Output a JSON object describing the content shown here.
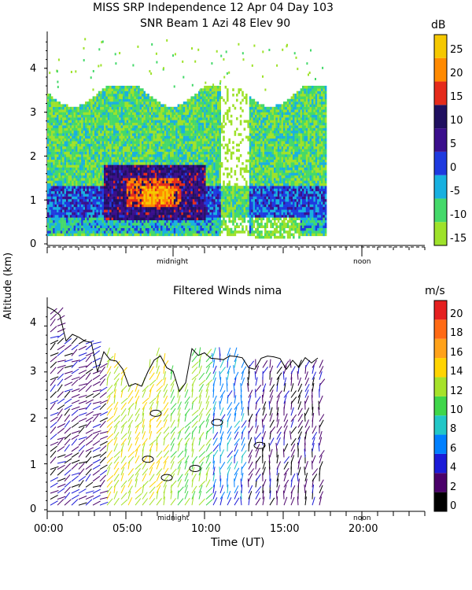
{
  "chart_data": [
    {
      "type": "heatmap",
      "title": "MISS SRP Independence  12 Apr 04 Day 103",
      "subtitle": "SNR Beam 1 Azi  48 Elev 90",
      "colorbar_unit": "dB",
      "colorbar_ticks": [
        "25",
        "20",
        "15",
        "10",
        "5",
        "0",
        "-5",
        "-10",
        "-15"
      ],
      "colorbar_range": [
        -15,
        30
      ],
      "colorbar_colors": [
        "#9ee22a",
        "#44d96a",
        "#18b0e0",
        "#1e3adf",
        "#3a0f8c",
        "#201060",
        "#e52b1b",
        "#ff8a00",
        "#f5c800"
      ],
      "y_ticks": [
        "0",
        "1",
        "2",
        "3",
        "4"
      ],
      "ylim": [
        0,
        4.8
      ],
      "x_range_hours": [
        0,
        24
      ],
      "data_extent_hours": [
        0,
        17.7
      ],
      "markers": [
        "midnight",
        "noon"
      ],
      "regions": [
        {
          "desc": "core",
          "t": [
            3.5,
            10.0
          ],
          "alt": [
            0.5,
            1.8
          ],
          "db": 15
        },
        {
          "desc": "peak",
          "t": [
            5.0,
            8.5
          ],
          "alt": [
            0.8,
            1.5
          ],
          "db": 22
        },
        {
          "desc": "lower layer",
          "t": [
            0.5,
            17.5
          ],
          "alt": [
            0.2,
            1.2
          ],
          "db": 5
        },
        {
          "desc": "upper layer",
          "t": [
            0,
            17.7
          ],
          "alt": [
            1.2,
            3.3
          ],
          "db": -8
        }
      ]
    },
    {
      "type": "vector-field",
      "title": "Filtered Winds nima",
      "colorbar_unit": "m/s",
      "colorbar_ticks": [
        "20",
        "18",
        "16",
        "14",
        "12",
        "10",
        "8",
        "6",
        "4",
        "2",
        "0"
      ],
      "colorbar_range": [
        0,
        22
      ],
      "colorbar_colors": [
        "#000000",
        "#4a006a",
        "#1b1bd8",
        "#0080ff",
        "#22c7c7",
        "#3fd64a",
        "#a6e22a",
        "#ffd400",
        "#ffa21a",
        "#ff6a14",
        "#e52020"
      ],
      "y_ticks": [
        "0",
        "1",
        "2",
        "3",
        "4"
      ],
      "ylim": [
        0,
        4.5
      ],
      "x_ticks": [
        "00:00",
        "05:00",
        "10:00",
        "15:00",
        "20:00"
      ],
      "xlabel": "Time (UT)",
      "markers": [
        "midnight",
        "noon"
      ],
      "speed_regions": [
        {
          "t": [
            0,
            3.5
          ],
          "speed": 3
        },
        {
          "t": [
            3.5,
            7.5
          ],
          "speed": 14
        },
        {
          "t": [
            7.5,
            10.5
          ],
          "speed": 12
        },
        {
          "t": [
            10.5,
            12.5
          ],
          "speed": 7
        },
        {
          "t": [
            12.5,
            17.5
          ],
          "speed": 3
        }
      ]
    }
  ],
  "ylabel": "Altitude (km)"
}
